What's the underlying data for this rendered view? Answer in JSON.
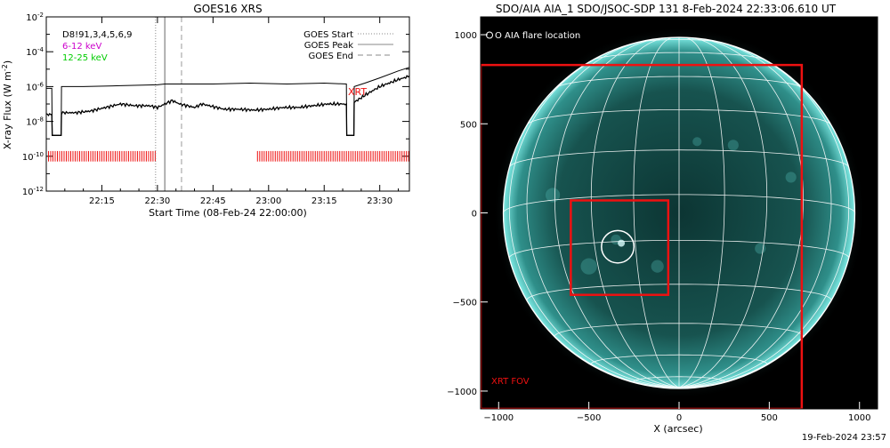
{
  "chart_data": [
    {
      "type": "line",
      "title": "GOES16 XRS",
      "ylabel": "X-ray Flux (W m",
      "ylabel_sup": "-2",
      "ylabel_close": ")",
      "xlabel": "Start Time (08-Feb-24 22:00:00)",
      "yscale": "log",
      "ylim_exp": [
        -12,
        -2
      ],
      "y_ticks": [
        {
          "base": "10",
          "exp": "-2"
        },
        {
          "base": "10",
          "exp": "-4"
        },
        {
          "base": "10",
          "exp": "-6"
        },
        {
          "base": "10",
          "exp": "-8"
        },
        {
          "base": "10",
          "exp": "-10"
        },
        {
          "base": "10",
          "exp": "-12"
        }
      ],
      "x_ticks": [
        "22:15",
        "22:30",
        "22:45",
        "23:00",
        "23:15",
        "23:30"
      ],
      "x_tick_minutes": [
        15,
        30,
        45,
        60,
        75,
        90
      ],
      "xlim_minutes": [
        0,
        98
      ],
      "legend_left": [
        {
          "text": "D8!91,3,4,5,6,9",
          "color": "#000000"
        },
        {
          "text": "6-12 keV",
          "color": "#cc00cc"
        },
        {
          "text": "12-25 keV",
          "color": "#00cc00"
        }
      ],
      "legend_right": [
        {
          "text": "GOES Start",
          "style": "dotted"
        },
        {
          "text": "GOES Peak",
          "style": "solid"
        },
        {
          "text": "GOES End",
          "style": "dashed"
        }
      ],
      "event_lines_minutes": {
        "start": 29.5,
        "peak": 32.0,
        "end": 36.5
      },
      "xrt_label": "XRT",
      "xrt_coverage_minutes": [
        [
          0,
          30
        ],
        [
          57,
          98
        ]
      ],
      "series": [
        {
          "style": "solid",
          "points": [
            [
              0,
              -6.1
            ],
            [
              1.5,
              -6.1
            ],
            [
              1.6,
              -8.8
            ],
            [
              4,
              -8.8
            ],
            [
              4.1,
              -6.0
            ],
            [
              10,
              -6.0
            ],
            [
              20,
              -5.95
            ],
            [
              30,
              -5.9
            ],
            [
              32,
              -5.85
            ],
            [
              36,
              -5.85
            ],
            [
              45,
              -5.85
            ],
            [
              55,
              -5.8
            ],
            [
              65,
              -5.85
            ],
            [
              75,
              -5.8
            ],
            [
              81,
              -5.85
            ],
            [
              81.1,
              -8.8
            ],
            [
              83,
              -8.8
            ],
            [
              83.1,
              -6.0
            ],
            [
              86,
              -5.8
            ],
            [
              90,
              -5.5
            ],
            [
              95,
              -5.1
            ],
            [
              98,
              -4.9
            ]
          ]
        },
        {
          "style": "noisy",
          "points": [
            [
              0,
              -7.6
            ],
            [
              1.5,
              -7.6
            ],
            [
              1.6,
              -8.8
            ],
            [
              4,
              -8.8
            ],
            [
              4.1,
              -7.5
            ],
            [
              8,
              -7.5
            ],
            [
              12,
              -7.4
            ],
            [
              16,
              -7.2
            ],
            [
              20,
              -7.0
            ],
            [
              24,
              -7.1
            ],
            [
              28,
              -7.1
            ],
            [
              30,
              -7.2
            ],
            [
              32,
              -7.0
            ],
            [
              34,
              -6.8
            ],
            [
              36,
              -7.0
            ],
            [
              40,
              -7.2
            ],
            [
              42,
              -7.0
            ],
            [
              44,
              -7.1
            ],
            [
              48,
              -7.3
            ],
            [
              52,
              -7.3
            ],
            [
              56,
              -7.35
            ],
            [
              60,
              -7.3
            ],
            [
              64,
              -7.2
            ],
            [
              68,
              -7.2
            ],
            [
              72,
              -7.1
            ],
            [
              76,
              -7.0
            ],
            [
              81,
              -7.0
            ],
            [
              81.1,
              -8.8
            ],
            [
              83,
              -8.8
            ],
            [
              83.1,
              -6.9
            ],
            [
              86,
              -6.5
            ],
            [
              90,
              -6.0
            ],
            [
              95,
              -5.6
            ],
            [
              98,
              -5.4
            ]
          ]
        }
      ]
    },
    {
      "type": "scatter",
      "title": "SDO/AIA AIA_1 SDO/JSOC-SDP 131  8-Feb-2024 22:33:06.610 UT",
      "xlabel": "X (arcsec)",
      "ylabel": "",
      "xlim": [
        -1100,
        1100
      ],
      "ylim": [
        -1100,
        1100
      ],
      "x_ticks": [
        -1000,
        -500,
        0,
        500,
        1000
      ],
      "y_ticks": [
        -1000,
        -500,
        0,
        500,
        1000
      ],
      "x_tick_labels": [
        "−1000",
        "−500",
        "0",
        "500",
        "1000"
      ],
      "y_tick_labels": [
        "−1000",
        "−500",
        "0",
        "500",
        "1000"
      ],
      "solar_radius_arcsec": 974,
      "legend": "O AIA flare location",
      "flare_location": {
        "x": -340,
        "y": -190,
        "r": 90
      },
      "xrt_fov_label": "XRT FOV",
      "xrt_fov": {
        "x": [
          -1100,
          680
        ],
        "y": [
          -1100,
          830
        ]
      },
      "xrt_subfield": {
        "x": [
          -600,
          -60
        ],
        "y": [
          -460,
          70
        ]
      },
      "colors": {
        "disk": "#1f6e6a",
        "limb": "#6fe0dc",
        "grid": "#ffffff",
        "box": "#ee1111"
      }
    }
  ],
  "footer": {
    "timestamp": "19-Feb-2024 23:57"
  }
}
